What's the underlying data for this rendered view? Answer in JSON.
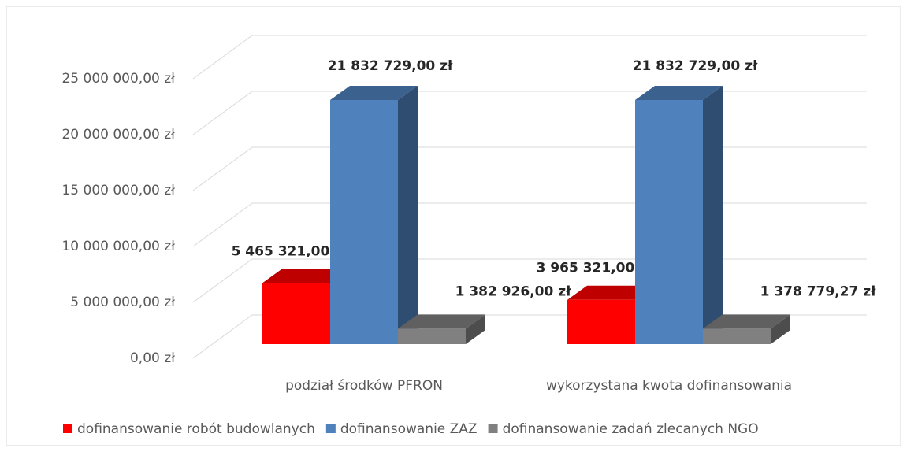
{
  "chart_data": {
    "type": "bar3d",
    "categories": [
      "podział środków PFRON",
      "wykorzystana kwota dofinansowania"
    ],
    "series": [
      {
        "name": "dofinansowanie robót budowlanych",
        "color": "#ff0000",
        "values": [
          5465321,
          3965321
        ],
        "value_labels": [
          "5 465 321,00 zł",
          "3 965 321,00 zł"
        ]
      },
      {
        "name": "dofinansowanie ZAZ",
        "color": "#4f81bd",
        "values": [
          21832729,
          21832729
        ],
        "value_labels": [
          "21 832 729,00 zł",
          "21 832 729,00 zł"
        ]
      },
      {
        "name": "dofinansowanie zadań zlecanych NGO",
        "color": "#808080",
        "values": [
          1382926,
          1378779.27
        ],
        "value_labels": [
          "1 382 926,00 zł",
          "1 378 779,27 zł"
        ]
      }
    ],
    "ylim": [
      0,
      25000000
    ],
    "yticks": [
      {
        "value": 0,
        "label": "0,00 zł"
      },
      {
        "value": 5000000,
        "label": "5 000 000,00 zł"
      },
      {
        "value": 10000000,
        "label": "10 000 000,00 zł"
      },
      {
        "value": 15000000,
        "label": "15 000 000,00 zł"
      },
      {
        "value": 20000000,
        "label": "20 000 000,00 zł"
      },
      {
        "value": 25000000,
        "label": "25 000 000,00 zł"
      }
    ],
    "grid": true,
    "legend": "bottom"
  }
}
